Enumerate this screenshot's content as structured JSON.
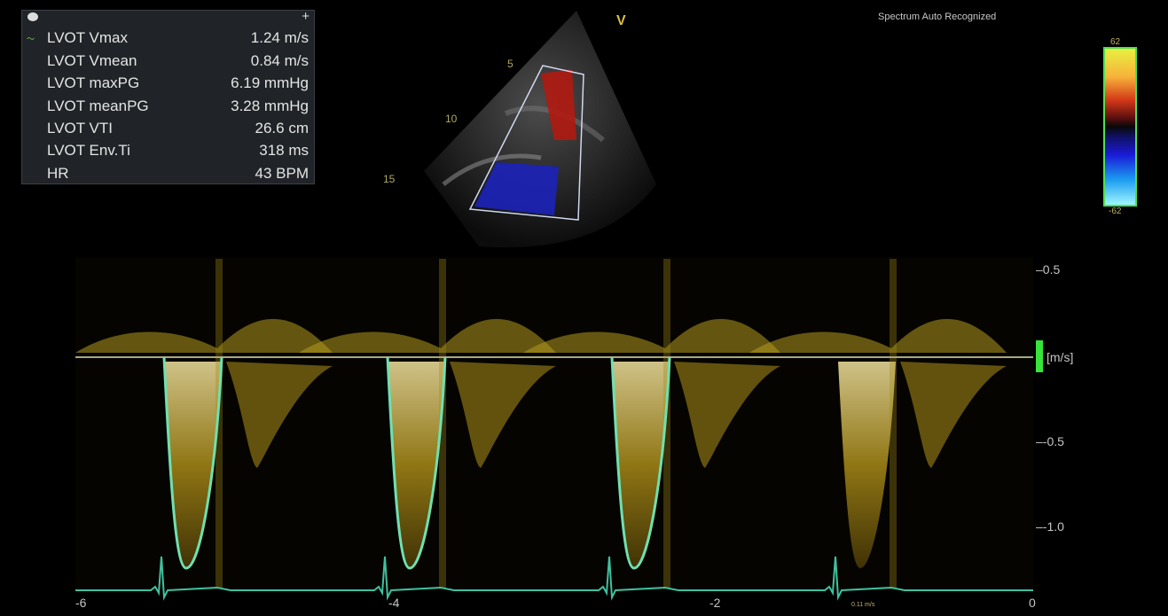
{
  "measurements": [
    {
      "label": "LVOT Vmax",
      "value": "1.24 m/s"
    },
    {
      "label": "LVOT Vmean",
      "value": "0.84 m/s"
    },
    {
      "label": "LVOT maxPG",
      "value": "6.19 mmHg"
    },
    {
      "label": "LVOT meanPG",
      "value": "3.28 mmHg"
    },
    {
      "label": "LVOT VTI",
      "value": "26.6 cm"
    },
    {
      "label": "LVOT Env.Ti",
      "value": "318 ms"
    },
    {
      "label": "HR",
      "value": "43 BPM"
    }
  ],
  "status_text": "Spectrum Auto Recognized",
  "echo": {
    "depth_labels": [
      "5",
      "10",
      "15"
    ],
    "orientation_marker": "V"
  },
  "colorbar": {
    "top_label": "62",
    "bottom_label": "-62"
  },
  "doppler_axis": {
    "y_ticks": [
      "0.5",
      "-0.5",
      "-1.0"
    ],
    "unit": "[m/s]",
    "x_ticks": [
      "-6",
      "-4",
      "-2",
      "0"
    ],
    "readout": "0.11 m/s"
  },
  "colors": {
    "envelope": "#6fe0b0",
    "spectrum": "#e8d038",
    "ecg": "#3ec2a0",
    "baseline": "#a8a880"
  }
}
